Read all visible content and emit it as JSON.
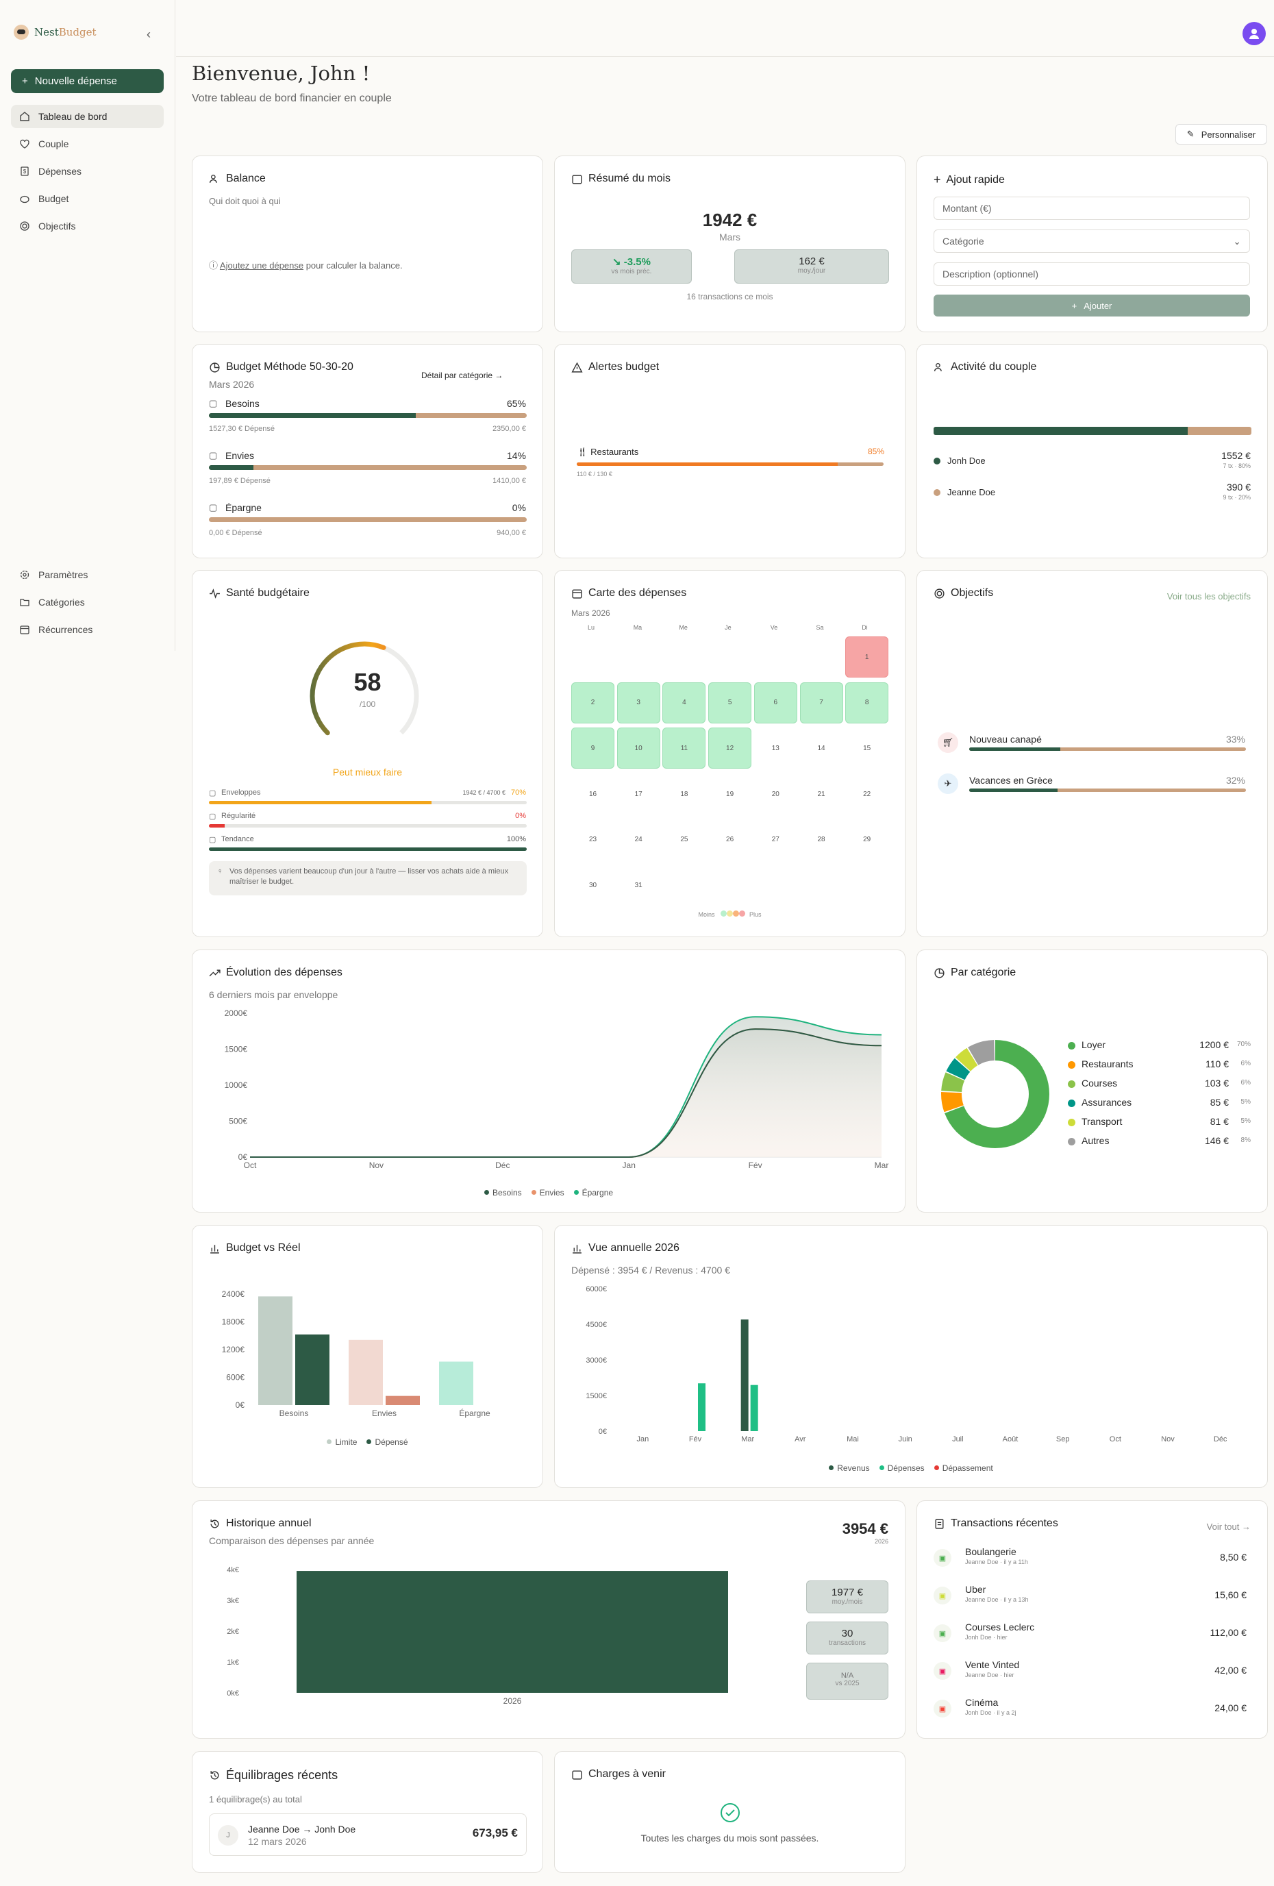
{
  "app": {
    "brand_a": "Nest",
    "brand_b": "Budget",
    "collapse": "‹"
  },
  "sidebar": {
    "new_expense": "Nouvelle dépense",
    "items": [
      {
        "label": "Tableau de bord"
      },
      {
        "label": "Couple"
      },
      {
        "label": "Dépenses"
      },
      {
        "label": "Budget"
      },
      {
        "label": "Objectifs"
      }
    ],
    "bottom_items": [
      {
        "label": "Paramètres"
      },
      {
        "label": "Catégories"
      },
      {
        "label": "Récurrences"
      }
    ]
  },
  "header": {
    "title": "Bienvenue, John !",
    "subtitle": "Votre tableau de bord financier en couple",
    "customize": "Personnaliser"
  },
  "balance": {
    "title": "Balance",
    "subtitle": "Qui doit quoi à qui",
    "link": "Ajoutez une dépense",
    "rest": " pour calculer la balance."
  },
  "summary": {
    "title": "Résumé du mois",
    "amount": "1942 €",
    "month": "Mars",
    "change": "-3.5%",
    "change_label": "vs mois préc.",
    "per_day": "162 €",
    "per_day_label": "moy./jour",
    "transactions": "16 transactions ce mois"
  },
  "quick_add": {
    "title": "Ajout rapide",
    "amount_placeholder": "Montant (€)",
    "category": "Catégorie",
    "description_placeholder": "Description (optionnel)",
    "submit": "Ajouter"
  },
  "budget_method": {
    "title": "Budget Méthode 50-30-20",
    "month": "Mars 2026",
    "detail_link": "Détail par catégorie",
    "items": [
      {
        "name": "Besoins",
        "percent": "65%",
        "fraction": 0.65,
        "spent": "1527,30 € Dépensé",
        "limit": "2350,00 €"
      },
      {
        "name": "Envies",
        "percent": "14%",
        "fraction": 0.14,
        "spent": "197,89 € Dépensé",
        "limit": "1410,00 €"
      },
      {
        "name": "Épargne",
        "percent": "0%",
        "fraction": 0,
        "spent": "0,00 € Dépensé",
        "limit": "940,00 €"
      }
    ]
  },
  "alerts": {
    "title": "Alertes budget",
    "items": [
      {
        "name": "Restaurants",
        "percent": "85%",
        "fraction": 0.85,
        "detail": "110 € / 130 €"
      }
    ]
  },
  "couple_activity": {
    "title": "Activité du couple",
    "split": 0.8,
    "members": [
      {
        "name": "Jonh Doe",
        "amount": "1552 €",
        "detail": "7 tx · 80%",
        "color": "#2d5a45"
      },
      {
        "name": "Jeanne Doe",
        "amount": "390 €",
        "detail": "9 tx · 20%",
        "color": "#c9a07e"
      }
    ]
  },
  "health": {
    "title": "Santé budgétaire",
    "score": "58",
    "out_of": "/100",
    "score_value": 58,
    "verdict": "Peut mieux faire",
    "rows": [
      {
        "label": "Enveloppes",
        "value": "1942 € / 4700 €",
        "percent": "70%",
        "fraction": 0.7,
        "color": "#f2a51a",
        "pcolor": "#f2a51a"
      },
      {
        "label": "Régularité",
        "value": "",
        "percent": "0%",
        "fraction": 0.05,
        "color": "#e53935",
        "pcolor": "#e53935"
      },
      {
        "label": "Tendance",
        "value": "",
        "percent": "100%",
        "fraction": 1,
        "color": "#2d5a45",
        "pcolor": "#555"
      }
    ],
    "tip": "Vos dépenses varient beaucoup d'un jour à l'autre — lisser vos achats aide à mieux maîtriser le budget."
  },
  "calendar": {
    "title": "Carte des dépenses",
    "month": "Mars 2026",
    "days": [
      "Lu",
      "Ma",
      "Me",
      "Je",
      "Ve",
      "Sa",
      "Di"
    ],
    "legend_less": "Moins",
    "legend_more": "Plus"
  },
  "goals": {
    "title": "Objectifs",
    "see_all": "Voir tous les objectifs",
    "items": [
      {
        "name": "Nouveau canapé",
        "percent": "33%",
        "fraction": 0.33
      },
      {
        "name": "Vacances en Grèce",
        "percent": "32%",
        "fraction": 0.32
      }
    ]
  },
  "evolution": {
    "title": "Évolution des dépenses",
    "subtitle": "6 derniers mois par enveloppe",
    "chart_data": {
      "type": "area",
      "x": [
        "Oct",
        "Nov",
        "Déc",
        "Jan",
        "Fév",
        "Mar"
      ],
      "ylim": [
        0,
        2000
      ],
      "yticks": [
        "2000€",
        "1500€",
        "1000€",
        "500€",
        "0€"
      ],
      "series": [
        {
          "name": "Besoins",
          "color": "#2d5a45",
          "values": [
            0,
            0,
            0,
            0,
            1780,
            1550
          ]
        },
        {
          "name": "Envies",
          "color": "#e8926b",
          "values": [
            0,
            0,
            0,
            0,
            1780,
            1550
          ]
        },
        {
          "name": "Épargne",
          "color": "#1fb37e",
          "values": [
            0,
            0,
            0,
            0,
            1950,
            1700
          ]
        }
      ]
    }
  },
  "categories": {
    "title": "Par catégorie",
    "chart_data": {
      "type": "pie",
      "items": [
        {
          "name": "Loyer",
          "amount": "1200 €",
          "pct": "70%",
          "value": 1200,
          "color": "#4caf50"
        },
        {
          "name": "Restaurants",
          "amount": "110 €",
          "pct": "6%",
          "value": 110,
          "color": "#ff9800"
        },
        {
          "name": "Courses",
          "amount": "103 €",
          "pct": "6%",
          "value": 103,
          "color": "#8bc34a"
        },
        {
          "name": "Assurances",
          "amount": "85 €",
          "pct": "5%",
          "value": 85,
          "color": "#009688"
        },
        {
          "name": "Transport",
          "amount": "81 €",
          "pct": "5%",
          "value": 81,
          "color": "#cddc39"
        },
        {
          "name": "Autres",
          "amount": "146 €",
          "pct": "8%",
          "value": 146,
          "color": "#9e9e9e"
        }
      ]
    }
  },
  "budget_vs_real": {
    "title": "Budget vs Réel",
    "chart_data": {
      "type": "bar",
      "categories": [
        "Besoins",
        "Envies",
        "Épargne"
      ],
      "ylim": [
        0,
        2400
      ],
      "yticks": [
        "2400€",
        "1800€",
        "1200€",
        "600€",
        "0€"
      ],
      "series": [
        {
          "name": "Limite",
          "values": [
            2350,
            1410,
            940
          ],
          "colors": [
            "#c1cfc6",
            "#f2d9d1",
            "#b7ecd9"
          ]
        },
        {
          "name": "Dépensé",
          "values": [
            1527,
            198,
            0
          ],
          "colors": [
            "#2d5a45",
            "#d98a73",
            "#1fb37e"
          ]
        }
      ]
    }
  },
  "annual": {
    "title": "Vue annuelle 2026",
    "subtitle": "Dépensé : 3954 € / Revenus : 4700 €",
    "chart_data": {
      "type": "bar",
      "categories": [
        "Jan",
        "Fév",
        "Mar",
        "Avr",
        "Mai",
        "Juin",
        "Juil",
        "Août",
        "Sep",
        "Oct",
        "Nov",
        "Déc"
      ],
      "ylim": [
        0,
        6000
      ],
      "yticks": [
        "6000€",
        "4500€",
        "3000€",
        "1500€",
        "0€"
      ],
      "series": [
        {
          "name": "Revenus",
          "color": "#2d5a45",
          "values": [
            0,
            0,
            4700,
            0,
            0,
            0,
            0,
            0,
            0,
            0,
            0,
            0
          ]
        },
        {
          "name": "Dépenses",
          "color": "#1fbf85",
          "values": [
            0,
            2012,
            1942,
            0,
            0,
            0,
            0,
            0,
            0,
            0,
            0,
            0
          ]
        },
        {
          "name": "Dépassement",
          "color": "#e53935",
          "values": [
            0,
            0,
            0,
            0,
            0,
            0,
            0,
            0,
            0,
            0,
            0,
            0
          ]
        }
      ]
    }
  },
  "history": {
    "title": "Historique annuel",
    "subtitle": "Comparaison des dépenses par année",
    "total": "3954 €",
    "year": "2026",
    "stats": [
      {
        "value": "1977 €",
        "label": "moy./mois"
      },
      {
        "value": "30",
        "label": "transactions"
      },
      {
        "value": "N/A",
        "label": "vs 2025"
      }
    ],
    "chart_data": {
      "type": "bar",
      "categories": [
        "2026"
      ],
      "values": [
        3954
      ],
      "ylim": [
        0,
        4000
      ],
      "yticks": [
        "4k€",
        "3k€",
        "2k€",
        "1k€",
        "0k€"
      ]
    }
  },
  "recent": {
    "title": "Transactions récentes",
    "see_all": "Voir tout",
    "items": [
      {
        "name": "Boulangerie",
        "meta": "Jeanne Doe · il y a 11h",
        "amount": "8,50 €",
        "color": "#4caf50"
      },
      {
        "name": "Uber",
        "meta": "Jeanne Doe · il y a 13h",
        "amount": "15,60 €",
        "color": "#cddc39"
      },
      {
        "name": "Courses Leclerc",
        "meta": "Jonh Doe · hier",
        "amount": "112,00 €",
        "color": "#4caf50"
      },
      {
        "name": "Vente Vinted",
        "meta": "Jeanne Doe · hier",
        "amount": "42,00 €",
        "color": "#e91e63"
      },
      {
        "name": "Cinéma",
        "meta": "Jonh Doe · il y a 2j",
        "amount": "24,00 €",
        "color": "#f44336"
      }
    ]
  },
  "balancing": {
    "title": "Équilibrages récents",
    "subtitle": "1 équilibrage(s) au total",
    "item": {
      "initial": "J",
      "names": "Jeanne Doe → Jonh Doe",
      "date": "12 mars 2026",
      "amount": "673,95 €"
    }
  },
  "upcoming": {
    "title": "Charges à venir",
    "message": "Toutes les charges du mois sont passées."
  }
}
